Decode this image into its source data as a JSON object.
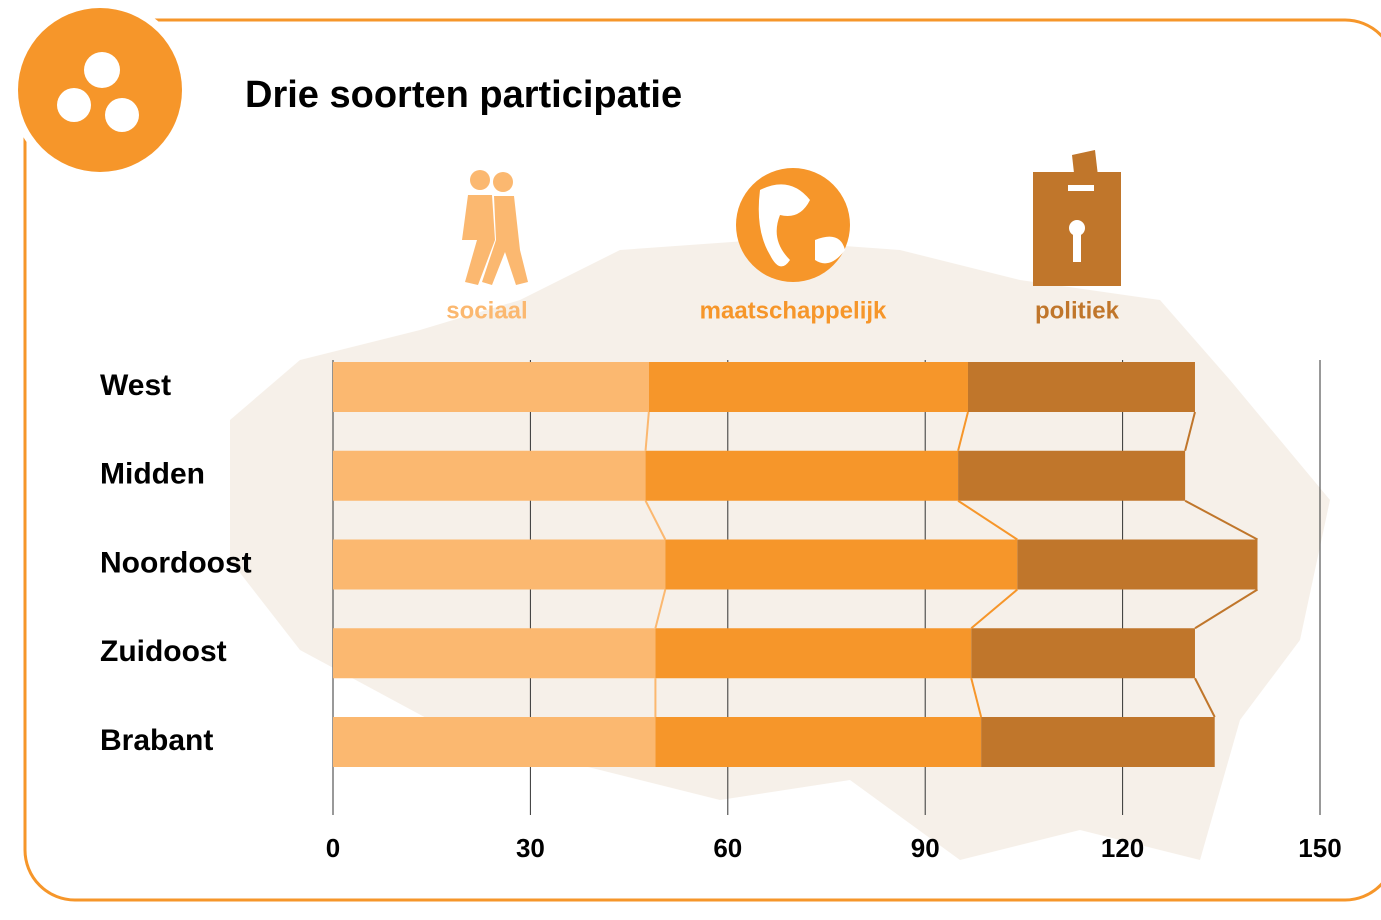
{
  "chart_data": {
    "type": "stacked-barh",
    "title": "Drie soorten participatie",
    "categories": [
      "West",
      "Midden",
      "Noordoost",
      "Zuidoost",
      "Brabant"
    ],
    "series": [
      {
        "name": "sociaal",
        "color": "#fbb870",
        "values": [
          48,
          47.5,
          50.5,
          49,
          49
        ]
      },
      {
        "name": "maatschappelijk",
        "color": "#f6962a",
        "values": [
          48.5,
          47.5,
          53.5,
          48,
          49.5
        ]
      },
      {
        "name": "politiek",
        "color": "#c0762b",
        "values": [
          34.5,
          34.5,
          36.5,
          34,
          35.5
        ]
      }
    ],
    "xlim": [
      0,
      150
    ],
    "xticks": [
      0,
      30,
      60,
      90,
      120,
      150
    ],
    "grid": true
  }
}
